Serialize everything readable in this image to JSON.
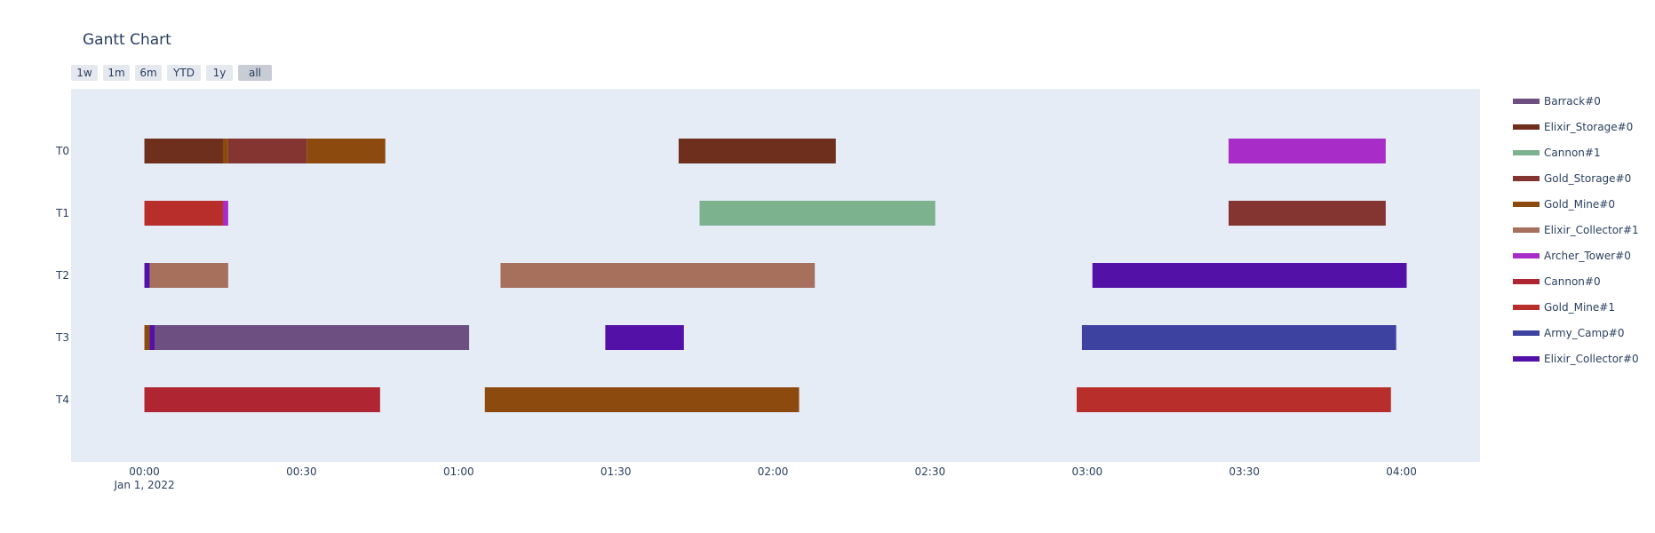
{
  "chart_data": {
    "type": "gantt",
    "title": "Gantt Chart",
    "range_buttons": [
      {
        "label": "1w",
        "active": false
      },
      {
        "label": "1m",
        "active": false
      },
      {
        "label": "6m",
        "active": false
      },
      {
        "label": "YTD",
        "active": false
      },
      {
        "label": "1y",
        "active": false
      },
      {
        "label": "all",
        "active": true
      }
    ],
    "x_axis": {
      "type": "time",
      "range": [
        "23:46",
        "04:15"
      ],
      "ticks": [
        {
          "value": "00:00",
          "label": "00:00",
          "sublabel": "Jan 1, 2022"
        },
        {
          "value": "00:30",
          "label": "00:30"
        },
        {
          "value": "01:00",
          "label": "01:00"
        },
        {
          "value": "01:30",
          "label": "01:30"
        },
        {
          "value": "02:00",
          "label": "02:00"
        },
        {
          "value": "02:30",
          "label": "02:30"
        },
        {
          "value": "03:00",
          "label": "03:00"
        },
        {
          "value": "03:30",
          "label": "03:30"
        },
        {
          "value": "04:00",
          "label": "04:00"
        }
      ]
    },
    "y_axis": {
      "categories": [
        "T0",
        "T1",
        "T2",
        "T3",
        "T4"
      ],
      "range": [
        -1,
        5
      ]
    },
    "background_color": "#e5ecf6",
    "legend_position": "right",
    "series": [
      {
        "name": "Barrack#0",
        "color": "#6e4f82",
        "tasks": [
          {
            "row": "T3",
            "start": "00:02",
            "end": "01:02"
          }
        ]
      },
      {
        "name": "Elixir_Storage#0",
        "color": "#6e2f1c",
        "tasks": [
          {
            "row": "T0",
            "start": "00:00",
            "end": "00:15"
          },
          {
            "row": "T0",
            "start": "01:42",
            "end": "02:12"
          }
        ]
      },
      {
        "name": "Cannon#1",
        "color": "#7db28f",
        "tasks": [
          {
            "row": "T1",
            "start": "01:46",
            "end": "02:31"
          }
        ]
      },
      {
        "name": "Gold_Storage#0",
        "color": "#843531",
        "tasks": [
          {
            "row": "T0",
            "start": "00:16",
            "end": "00:31"
          },
          {
            "row": "T1",
            "start": "03:27",
            "end": "03:57"
          }
        ]
      },
      {
        "name": "Gold_Mine#0",
        "color": "#8c4a0e",
        "tasks": [
          {
            "row": "T0",
            "start": "00:15",
            "end": "00:16"
          },
          {
            "row": "T0",
            "start": "00:31",
            "end": "00:46"
          },
          {
            "row": "T3",
            "start": "00:00",
            "end": "00:01"
          },
          {
            "row": "T4",
            "start": "01:05",
            "end": "02:05"
          }
        ]
      },
      {
        "name": "Elixir_Collector#1",
        "color": "#a6705c",
        "tasks": [
          {
            "row": "T2",
            "start": "00:01",
            "end": "00:16"
          },
          {
            "row": "T2",
            "start": "01:08",
            "end": "02:08"
          }
        ]
      },
      {
        "name": "Archer_Tower#0",
        "color": "#a82cc8",
        "tasks": [
          {
            "row": "T1",
            "start": "00:15",
            "end": "00:16"
          },
          {
            "row": "T0",
            "start": "03:27",
            "end": "03:57"
          }
        ]
      },
      {
        "name": "Cannon#0",
        "color": "#b02532",
        "tasks": [
          {
            "row": "T4",
            "start": "00:00",
            "end": "00:45"
          }
        ]
      },
      {
        "name": "Gold_Mine#1",
        "color": "#b82e2a",
        "tasks": [
          {
            "row": "T1",
            "start": "00:00",
            "end": "00:15"
          },
          {
            "row": "T4",
            "start": "02:58",
            "end": "03:58"
          }
        ]
      },
      {
        "name": "Army_Camp#0",
        "color": "#3d42a0",
        "tasks": [
          {
            "row": "T3",
            "start": "02:59",
            "end": "03:59"
          }
        ]
      },
      {
        "name": "Elixir_Collector#0",
        "color": "#5311a8",
        "tasks": [
          {
            "row": "T2",
            "start": "00:00",
            "end": "00:01"
          },
          {
            "row": "T3",
            "start": "00:01",
            "end": "00:02"
          },
          {
            "row": "T3",
            "start": "01:28",
            "end": "01:43"
          },
          {
            "row": "T2",
            "start": "03:01",
            "end": "04:01"
          }
        ]
      }
    ]
  }
}
